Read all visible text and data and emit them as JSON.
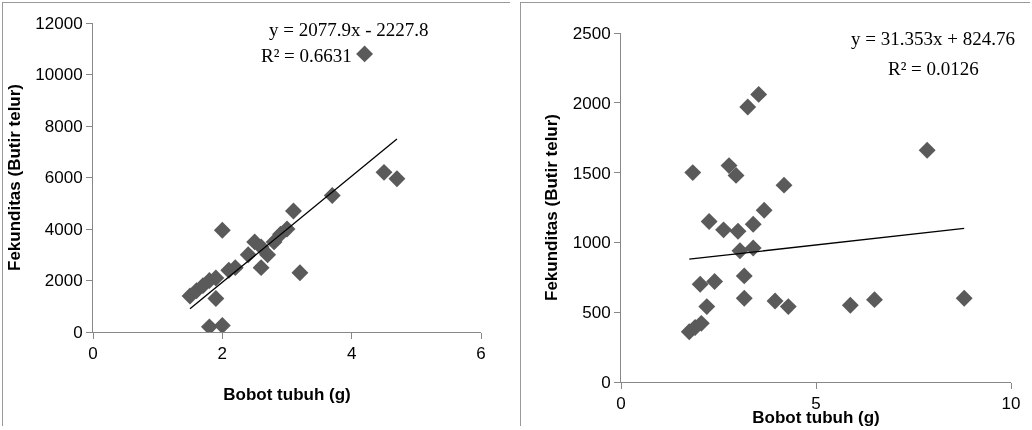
{
  "chart_data": [
    {
      "type": "scatter",
      "xlabel": "Bobot tubuh (g)",
      "ylabel": "Fekunditas (Butir telur)",
      "annotations": [
        "y = 2077.9x - 2227.8",
        "R² = 0.6631"
      ],
      "xlim": [
        0,
        6
      ],
      "xticks": [
        0,
        2,
        4,
        6
      ],
      "ylim": [
        0,
        12000
      ],
      "yticks": [
        0,
        2000,
        4000,
        6000,
        8000,
        10000,
        12000
      ],
      "grid": false,
      "series": [
        {
          "marker": "diamond",
          "color": "#5a5a5a",
          "x": [
            1.5,
            1.6,
            1.7,
            1.8,
            1.8,
            1.9,
            1.9,
            2.0,
            2.0,
            2.1,
            2.2,
            2.4,
            2.5,
            2.6,
            2.6,
            2.7,
            2.8,
            2.9,
            3.0,
            3.1,
            3.2,
            3.7,
            4.2,
            4.5,
            4.7
          ],
          "values": [
            1400,
            1600,
            1800,
            2000,
            200,
            1300,
            2100,
            250,
            3950,
            2400,
            2500,
            3000,
            3500,
            2500,
            3300,
            3000,
            3500,
            3800,
            4000,
            4700,
            2300,
            5300,
            10800,
            6200,
            5950
          ]
        },
        {
          "type": "line",
          "marker": "none",
          "color": "#000000",
          "x": [
            1.5,
            4.7
          ],
          "values": [
            900,
            7500
          ]
        }
      ]
    },
    {
      "type": "scatter",
      "xlabel": "Bobot tubuh (g)",
      "ylabel": "Fekunditas (Butir telur)",
      "annotations": [
        "y = 31.353x + 824.76",
        "R² = 0.0126"
      ],
      "xlim": [
        0,
        10
      ],
      "xticks": [
        0,
        5,
        10
      ],
      "ylim": [
        0,
        2500
      ],
      "yticks": [
        0,
        500,
        1000,
        1500,
        2000,
        2500
      ],
      "grid": false,
      "series": [
        {
          "marker": "diamond",
          "color": "#5a5a5a",
          "x": [
            1.84,
            2.77,
            2.95,
            3.25,
            3.53,
            7.85,
            4.18,
            3.67,
            3.39,
            2.26,
            2.63,
            3.0,
            3.05,
            3.39,
            3.16,
            2.03,
            2.4,
            3.16,
            3.95,
            4.29,
            2.2,
            5.88,
            6.5,
            8.8,
            1.75,
            1.9,
            2.06
          ],
          "values": [
            1500,
            1550,
            1480,
            1970,
            2060,
            1660,
            1410,
            1230,
            1130,
            1150,
            1090,
            1080,
            940,
            960,
            760,
            700,
            720,
            600,
            580,
            540,
            540,
            550,
            590,
            600,
            360,
            390,
            420
          ]
        },
        {
          "type": "line",
          "marker": "none",
          "color": "#000000",
          "x": [
            1.75,
            8.8
          ],
          "values": [
            880,
            1100
          ]
        }
      ]
    }
  ]
}
